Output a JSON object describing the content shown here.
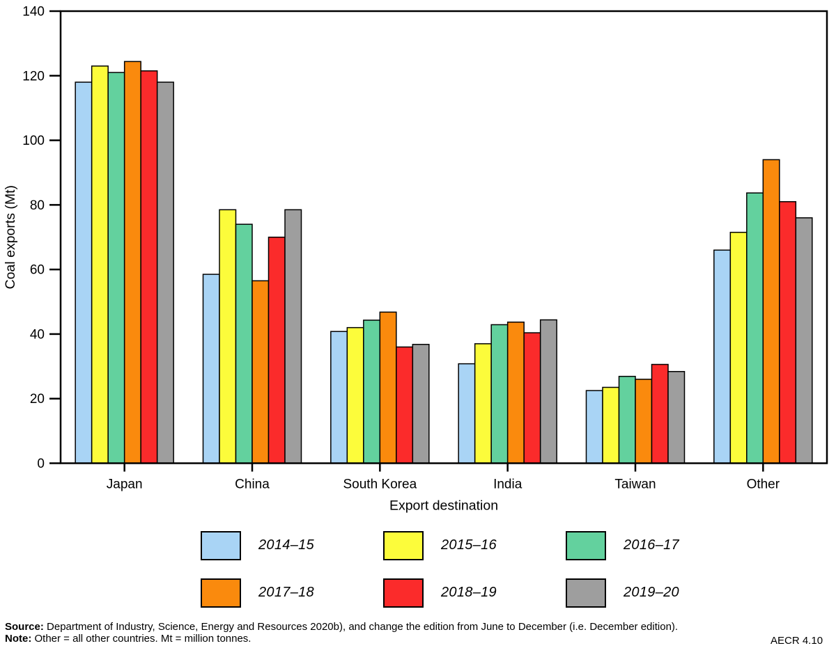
{
  "chart_data": {
    "type": "bar",
    "title": "",
    "xlabel": "Export destination",
    "ylabel": "Coal exports (Mt)",
    "ylim": [
      0,
      140
    ],
    "yticks": [
      0,
      20,
      40,
      60,
      80,
      100,
      120,
      140
    ],
    "grid": false,
    "legend_position": "bottom",
    "categories": [
      "Japan",
      "China",
      "South Korea",
      "India",
      "Taiwan",
      "Other"
    ],
    "series": [
      {
        "name": "2014–15",
        "color": "#A9D4F5",
        "values": [
          118.0,
          58.5,
          40.8,
          30.8,
          22.5,
          66.0
        ]
      },
      {
        "name": "2015–16",
        "color": "#FCFC3B",
        "values": [
          123.0,
          78.5,
          42.0,
          37.0,
          23.5,
          71.5
        ]
      },
      {
        "name": "2016–17",
        "color": "#63D19E",
        "values": [
          121.0,
          74.0,
          44.3,
          42.9,
          26.9,
          83.7
        ]
      },
      {
        "name": "2017–18",
        "color": "#FA8A0D",
        "values": [
          124.4,
          56.5,
          46.8,
          43.7,
          26.0,
          94.0
        ]
      },
      {
        "name": "2018–19",
        "color": "#FB2B2B",
        "values": [
          121.5,
          70.0,
          36.0,
          40.4,
          30.6,
          81.0
        ]
      },
      {
        "name": "2019–20",
        "color": "#9E9E9E",
        "values": [
          118.0,
          78.5,
          36.8,
          44.4,
          28.4,
          76.0
        ]
      }
    ]
  },
  "footer": {
    "source_label": "Source:",
    "source_text": " Department of Industry, Science, Energy and Resources 2020b), and change the edition from June to December (i.e. December edition).",
    "note_label": "Note:",
    "note_text": " Other = all other countries. Mt = million tonnes.",
    "figure_code": "AECR 4.10"
  }
}
